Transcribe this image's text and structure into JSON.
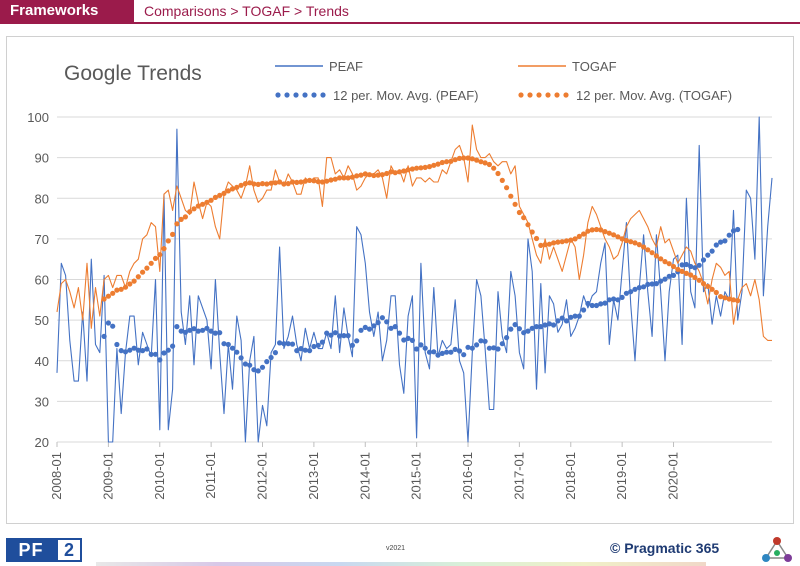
{
  "header": {
    "brand": "Frameworks",
    "breadcrumb": "Comparisons > TOGAF > Trends"
  },
  "footer": {
    "version": "v2021",
    "company": "© Pragmatic 365",
    "logo_left": "PF",
    "logo_right": "2"
  },
  "colors": {
    "brand": "#9b1b4b",
    "peaf": "#4472c4",
    "togaf": "#ed7d31",
    "gridline": "#d9d9d9"
  },
  "chart_data": {
    "type": "line",
    "title": "Google Trends",
    "xlabel": "",
    "ylabel": "",
    "ylim": [
      20,
      100
    ],
    "yticks": [
      20,
      30,
      40,
      50,
      60,
      70,
      80,
      90,
      100
    ],
    "grid": true,
    "legend": "top",
    "xticks": [
      "2008-01",
      "2009-01",
      "2010-01",
      "2011-01",
      "2012-01",
      "2013-01",
      "2014-01",
      "2015-01",
      "2016-01",
      "2017-01",
      "2018-01",
      "2019-01",
      "2020-01"
    ],
    "x_start": "2008-01",
    "x_step": "month",
    "series": [
      {
        "name": "PEAF",
        "style": "line",
        "values": [
          37,
          64,
          61,
          45,
          35,
          35,
          52,
          35,
          65,
          44,
          42,
          61,
          20,
          20,
          43,
          27,
          42,
          51,
          51,
          39,
          47,
          44,
          41,
          60,
          23,
          81,
          23,
          33,
          97,
          52,
          44,
          56,
          39,
          56,
          53,
          50,
          38,
          60,
          42,
          27,
          44,
          33,
          51,
          45,
          20,
          40,
          46,
          20,
          29,
          24,
          42,
          44,
          68,
          43,
          46,
          51,
          44,
          40,
          48,
          43,
          47,
          43,
          43,
          47,
          43,
          56,
          42,
          53,
          46,
          41,
          73,
          71,
          64,
          52,
          46,
          52,
          40,
          45,
          56,
          56,
          39,
          32,
          51,
          56,
          21,
          64,
          42,
          38,
          58,
          41,
          45,
          43,
          44,
          55,
          40,
          37,
          20,
          42,
          60,
          56,
          43,
          28,
          28,
          57,
          46,
          42,
          62,
          56,
          42,
          38,
          70,
          62,
          33,
          59,
          37,
          56,
          54,
          47,
          49,
          55,
          46,
          48,
          51,
          56,
          53,
          56,
          57,
          64,
          69,
          44,
          55,
          50,
          62,
          74,
          54,
          40,
          58,
          71,
          57,
          46,
          71,
          57,
          40,
          57,
          65,
          66,
          44,
          80,
          57,
          53,
          93,
          57,
          59,
          49,
          56,
          51,
          57,
          55,
          77,
          50,
          57,
          82,
          80,
          65,
          100,
          56,
          73,
          85
        ]
      },
      {
        "name": "TOGAF",
        "style": "line",
        "values": [
          52,
          59,
          60,
          57,
          53,
          58,
          50,
          64,
          48,
          58,
          51,
          60,
          61,
          58,
          61,
          61,
          58,
          62,
          64,
          65,
          70,
          71,
          74,
          73,
          62,
          81,
          82,
          77,
          83,
          80,
          77,
          76,
          84,
          79,
          75,
          79,
          78,
          73,
          70,
          81,
          84,
          83,
          82,
          80,
          83,
          88,
          82,
          79,
          80,
          82,
          82,
          87,
          84,
          83,
          86,
          84,
          81,
          81,
          85,
          84,
          85,
          85,
          78,
          90,
          90,
          86,
          87,
          85,
          88,
          86,
          82,
          83,
          85,
          86,
          86,
          87,
          85,
          80,
          88,
          86,
          87,
          84,
          88,
          83,
          85,
          85,
          84,
          85,
          84,
          84,
          87,
          86,
          89,
          92,
          93,
          90,
          84,
          98,
          92,
          90,
          90,
          91,
          89,
          88,
          89,
          89,
          86,
          88,
          78,
          76,
          74,
          70,
          66,
          64,
          70,
          65,
          68,
          65,
          62,
          66,
          70,
          68,
          60,
          66,
          74,
          78,
          76,
          73,
          70,
          68,
          65,
          66,
          69,
          73,
          75,
          76,
          77,
          75,
          73,
          70,
          68,
          73,
          69,
          70,
          67,
          64,
          66,
          68,
          67,
          64,
          62,
          59,
          54,
          60,
          64,
          63,
          61,
          62,
          49,
          55,
          58,
          59,
          56,
          60,
          55,
          46,
          45,
          45
        ]
      },
      {
        "name": "12 per. Mov. Avg. (PEAF)",
        "style": "dotted",
        "values": [
          null,
          null,
          null,
          null,
          null,
          null,
          null,
          null,
          null,
          null,
          null,
          46.0,
          49.3,
          48.5,
          44.0,
          42.5,
          42.2,
          42.6,
          43.1,
          42.6,
          42.5,
          42.9,
          41.6,
          41.6,
          40.2,
          41.9,
          42.6,
          43.6,
          48.4,
          47.3,
          47.0,
          47.5,
          47.9,
          47.3,
          47.5,
          48.0,
          47.3,
          46.8,
          46.9,
          44.2,
          44.0,
          43.1,
          42.1,
          40.7,
          39.2,
          38.9,
          37.8,
          37.5,
          38.4,
          39.8,
          40.8,
          42.0,
          44.4,
          44.2,
          44.2,
          44.1,
          42.5,
          43.0,
          42.6,
          42.5,
          43.5,
          43.8,
          44.6,
          46.8,
          46.3,
          46.9,
          46.1,
          46.2,
          46.2,
          43.8,
          44.9,
          47.5,
          48.2,
          47.8,
          48.6,
          49.4,
          50.6,
          49.6,
          48.0,
          48.4,
          46.8,
          45.1,
          45.5,
          45.0,
          42.9,
          43.9,
          43.1,
          42.1,
          42.2,
          41.4,
          41.8,
          42.1,
          42.1,
          42.8,
          42.4,
          41.5,
          43.3,
          43.1,
          43.9,
          44.9,
          44.8,
          43.1,
          43.2,
          42.9,
          44.2,
          45.7,
          47.8,
          48.9,
          47.9,
          46.9,
          47.3,
          48.0,
          48.4,
          48.4,
          48.8,
          49.1,
          48.8,
          49.8,
          50.5,
          49.8,
          50.7,
          51.0,
          51.0,
          52.5,
          54.1,
          53.6,
          53.6,
          54.0,
          54.2,
          55.0,
          55.2,
          55.0,
          55.6,
          56.6,
          57.0,
          57.6,
          58.0,
          58.2,
          58.8,
          58.9,
          59.0,
          59.6,
          60.1,
          60.8,
          61.0,
          61.9,
          63.6,
          63.7,
          63.2,
          62.9,
          63.5,
          64.8,
          66.0,
          67.0,
          68.5,
          69.2,
          69.5,
          70.9,
          72.0,
          72.3
        ]
      },
      {
        "name": "12 per. Mov. Avg. (TOGAF)",
        "style": "dotted",
        "values": [
          null,
          null,
          null,
          null,
          null,
          null,
          null,
          null,
          null,
          null,
          null,
          55.2,
          55.9,
          56.6,
          57.4,
          57.6,
          58.1,
          58.9,
          59.6,
          60.7,
          61.8,
          62.8,
          64.0,
          65.2,
          66.1,
          67.6,
          69.5,
          71.1,
          73.7,
          74.8,
          75.4,
          76.7,
          77.4,
          78.1,
          78.5,
          79.0,
          79.5,
          80.2,
          80.7,
          81.2,
          81.8,
          82.3,
          82.7,
          83.2,
          83.6,
          83.8,
          83.5,
          83.4,
          83.6,
          83.5,
          83.7,
          83.8,
          84.0,
          83.5,
          83.6,
          84.0,
          83.9,
          84.0,
          84.2,
          84.4,
          84.3,
          84.1,
          84.0,
          84.2,
          84.5,
          84.7,
          85.0,
          85.0,
          85.0,
          85.2,
          85.5,
          85.7,
          86.0,
          85.8,
          85.6,
          85.7,
          85.8,
          86.1,
          86.5,
          86.3,
          86.5,
          86.7,
          87.0,
          87.2,
          87.4,
          87.5,
          87.6,
          87.8,
          88.1,
          88.4,
          88.8,
          89.0,
          89.1,
          89.5,
          89.8,
          89.9,
          89.9,
          89.7,
          89.4,
          89.0,
          88.7,
          88.3,
          87.4,
          86.1,
          84.4,
          82.6,
          80.5,
          78.5,
          76.5,
          75.2,
          73.5,
          71.7,
          70.1,
          68.4,
          68.6,
          68.7,
          69.0,
          69.2,
          69.3,
          69.5,
          69.7,
          70.0,
          70.6,
          71.2,
          71.9,
          72.2,
          72.3,
          72.2,
          71.8,
          71.4,
          71.0,
          70.5,
          70.0,
          69.6,
          69.3,
          69.0,
          68.6,
          68.0,
          67.3,
          66.6,
          65.8,
          65.1,
          64.4,
          63.9,
          63.2,
          62.5,
          62.0,
          61.5,
          61.1,
          60.5,
          59.8,
          59.0,
          58.3,
          57.6,
          56.8,
          55.8,
          55.5,
          55.2,
          55.0,
          54.8
        ]
      }
    ]
  }
}
